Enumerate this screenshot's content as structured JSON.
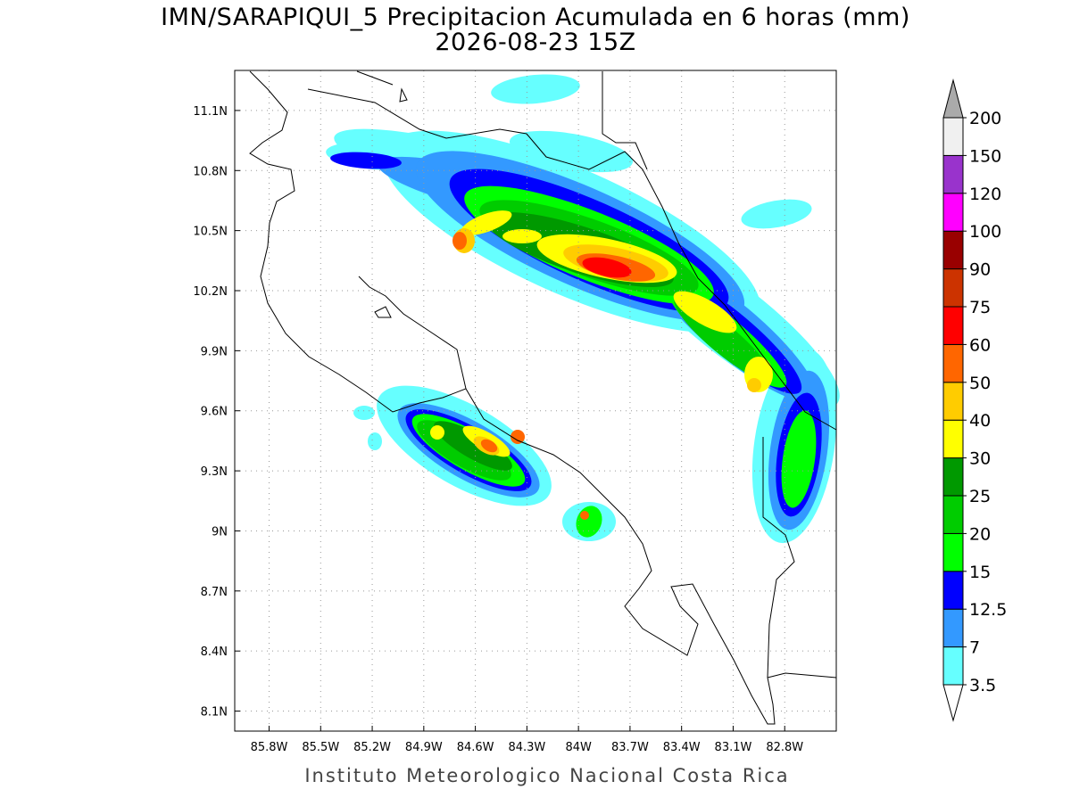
{
  "title": "IMN/SARAPIQUI_5 Precipitacion Acumulada en 6 horas (mm)",
  "subtitle": "2026-08-23 15Z",
  "credit": "Instituto Meteorologico Nacional Costa Rica",
  "map": {
    "xlim": [
      -86.0,
      -82.5
    ],
    "ylim": [
      8.0,
      11.3
    ],
    "grid": true,
    "xticks": [
      {
        "value": -85.8,
        "label": "85.8W"
      },
      {
        "value": -85.5,
        "label": "85.5W"
      },
      {
        "value": -85.2,
        "label": "85.2W"
      },
      {
        "value": -84.9,
        "label": "84.9W"
      },
      {
        "value": -84.6,
        "label": "84.6W"
      },
      {
        "value": -84.3,
        "label": "84.3W"
      },
      {
        "value": -84.0,
        "label": "84W"
      },
      {
        "value": -83.7,
        "label": "83.7W"
      },
      {
        "value": -83.4,
        "label": "83.4W"
      },
      {
        "value": -83.1,
        "label": "83.1W"
      },
      {
        "value": -82.8,
        "label": "82.8W"
      }
    ],
    "yticks": [
      {
        "value": 11.1,
        "label": "11.1N"
      },
      {
        "value": 10.8,
        "label": "10.8N"
      },
      {
        "value": 10.5,
        "label": "10.5N"
      },
      {
        "value": 10.2,
        "label": "10.2N"
      },
      {
        "value": 9.9,
        "label": "9.9N"
      },
      {
        "value": 9.6,
        "label": "9.6N"
      },
      {
        "value": 9.3,
        "label": "9.3N"
      },
      {
        "value": 9.0,
        "label": "9N"
      },
      {
        "value": 8.7,
        "label": "8.7N"
      },
      {
        "value": 8.4,
        "label": "8.4N"
      },
      {
        "value": 8.1,
        "label": "8.1N"
      }
    ]
  },
  "colorbar": {
    "levels": [
      3.5,
      7,
      12.5,
      15,
      20,
      25,
      30,
      40,
      50,
      60,
      75,
      90,
      100,
      120,
      150,
      200
    ],
    "colors": [
      "#66ffff",
      "#3399ff",
      "#0000ff",
      "#00ff00",
      "#00cc00",
      "#009900",
      "#ffff00",
      "#ffcc00",
      "#ff6600",
      "#ff0000",
      "#cc3300",
      "#990000",
      "#ff00ff",
      "#9933cc",
      "#f0f0f0"
    ],
    "under_color": "#ffffff",
    "over_color": "#aaaaaa"
  }
}
